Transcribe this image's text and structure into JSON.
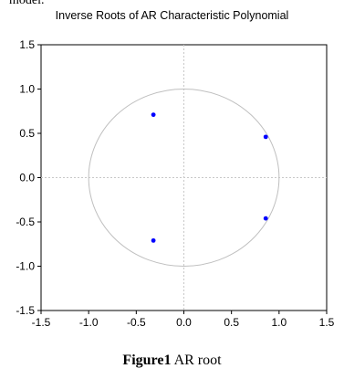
{
  "header_fragment": "model.",
  "chart_data": {
    "type": "scatter",
    "title": "Inverse Roots of AR Characteristic Polynomial",
    "xlabel": "",
    "ylabel": "",
    "xlim": [
      -1.5,
      1.5
    ],
    "ylim": [
      -1.5,
      1.5
    ],
    "x_ticks": [
      "-1.5",
      "-1.0",
      "-0.5",
      "0.0",
      "0.5",
      "1.0",
      "1.5"
    ],
    "y_ticks": [
      "1.5",
      "1.0",
      "0.5",
      "0.0",
      "-0.5",
      "-1.0",
      "-1.5"
    ],
    "unit_circle": true,
    "zero_lines": true,
    "grid": false,
    "points": [
      {
        "x": -0.32,
        "y": 0.71
      },
      {
        "x": 0.86,
        "y": 0.46
      },
      {
        "x": 0.86,
        "y": -0.46
      },
      {
        "x": -0.32,
        "y": -0.71
      }
    ],
    "colors": {
      "points": "#0000ff",
      "circle": "#bfbfbf",
      "axes": "#000000",
      "zero_lines": "#c8c8c8"
    }
  },
  "caption": {
    "bold": "Figure1",
    "text": " AR root"
  }
}
